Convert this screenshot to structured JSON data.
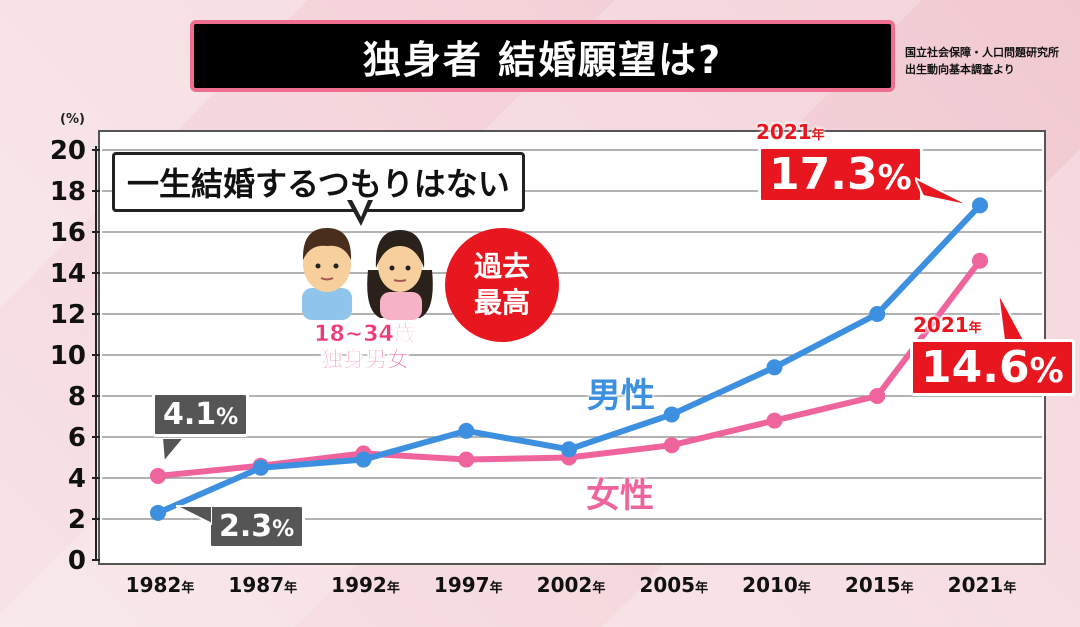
{
  "title": "独身者 結婚願望は?",
  "source": [
    "国立社会保障・人口問題研究所",
    "出生動向基本調査より"
  ],
  "callout": "一生結婚するつもりはない",
  "figure_caption": [
    "18~34歳",
    "独身男女"
  ],
  "record_badge": [
    "過去",
    "最高"
  ],
  "annotations": {
    "male_start": {
      "value": "2.3",
      "unit": "%"
    },
    "female_start": {
      "value": "4.1",
      "unit": "%"
    },
    "male_end": {
      "year": "2021",
      "year_unit": "年",
      "value": "17.3",
      "unit": "%"
    },
    "female_end": {
      "year": "2021",
      "year_unit": "年",
      "value": "14.6",
      "unit": "%"
    }
  },
  "colors": {
    "male": "#3d8fe0",
    "female": "#f0649e",
    "highlight": "#e8161f"
  },
  "chart_data": {
    "type": "line",
    "unit_label": "(%)",
    "categories": [
      "1982年",
      "1987年",
      "1992年",
      "1997年",
      "2002年",
      "2005年",
      "2010年",
      "2015年",
      "2021年"
    ],
    "series": [
      {
        "name": "男性",
        "values": [
          2.3,
          4.5,
          4.9,
          6.3,
          5.4,
          7.1,
          9.4,
          12.0,
          17.3
        ]
      },
      {
        "name": "女性",
        "values": [
          4.1,
          4.6,
          5.2,
          4.9,
          5.0,
          5.6,
          6.8,
          8.0,
          14.6
        ]
      }
    ],
    "ylim": [
      0,
      20
    ],
    "yticks": [
      0,
      2,
      4,
      6,
      8,
      10,
      12,
      14,
      16,
      18,
      20
    ],
    "grid": true
  }
}
